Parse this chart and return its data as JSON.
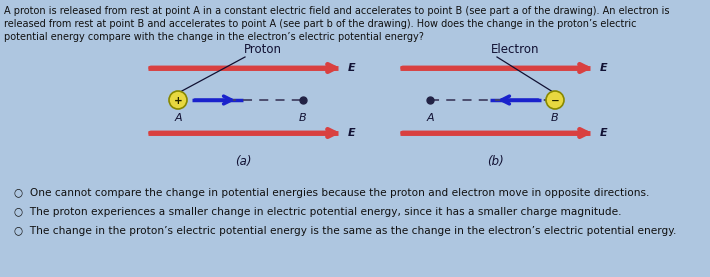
{
  "bg_color": "#aec6e0",
  "question_lines": [
    "A proton is released from rest at point A in a constant electric field and accelerates to point B (see part a of the drawing). An electron is",
    "released from rest at point B and accelerates to point A (see part b of the drawing). How does the change in the proton’s electric",
    "potential energy compare with the change in the electron’s electric potential energy?"
  ],
  "panel_a_label": "(a)",
  "panel_b_label": "(b)",
  "proton_label": "Proton",
  "electron_label": "Electron",
  "options": [
    "One cannot compare the change in potential energies because the proton and electron move in opposite directions.",
    "The proton experiences a smaller change in electric potential energy, since it has a smaller charge magnitude.",
    "The change in the proton’s electric potential energy is the same as the change in the electron’s electric potential energy."
  ],
  "field_line_color": "#d94040",
  "particle_fill": "#e8d840",
  "particle_edge": "#888800",
  "motion_arrow_color": "#1a22cc",
  "dashed_color": "#444466",
  "dot_color": "#222244",
  "text_color": "#111111",
  "label_color": "#111133",
  "title_color": "#111133"
}
